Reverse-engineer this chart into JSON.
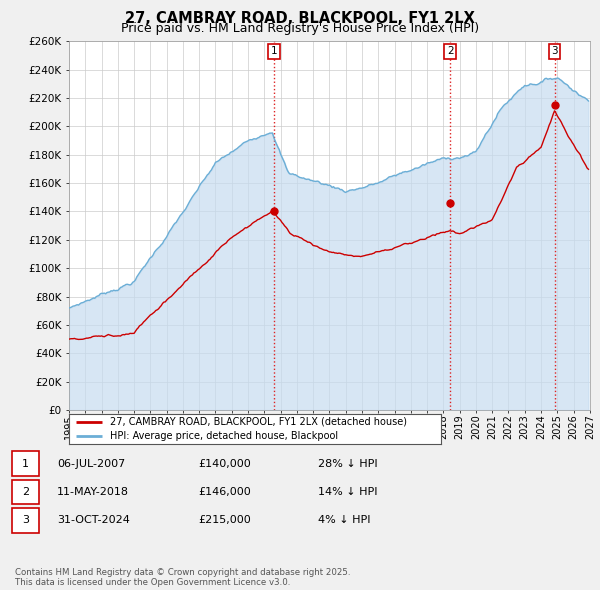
{
  "title": "27, CAMBRAY ROAD, BLACKPOOL, FY1 2LX",
  "subtitle": "Price paid vs. HM Land Registry's House Price Index (HPI)",
  "ylim": [
    0,
    260000
  ],
  "yticks": [
    0,
    20000,
    40000,
    60000,
    80000,
    100000,
    120000,
    140000,
    160000,
    180000,
    200000,
    220000,
    240000,
    260000
  ],
  "xlim_start": 1995.0,
  "xlim_end": 2027.0,
  "sale_year_months": [
    2007.583,
    2018.417,
    2024.833
  ],
  "sale_prices": [
    140000,
    146000,
    215000
  ],
  "sale_labels": [
    "1",
    "2",
    "3"
  ],
  "vline_color": "#dd2222",
  "legend_entries": [
    "27, CAMBRAY ROAD, BLACKPOOL, FY1 2LX (detached house)",
    "HPI: Average price, detached house, Blackpool"
  ],
  "table_rows": [
    [
      "1",
      "06-JUL-2007",
      "£140,000",
      "28% ↓ HPI"
    ],
    [
      "2",
      "11-MAY-2018",
      "£146,000",
      "14% ↓ HPI"
    ],
    [
      "3",
      "31-OCT-2024",
      "£215,000",
      "4% ↓ HPI"
    ]
  ],
  "footer": "Contains HM Land Registry data © Crown copyright and database right 2025.\nThis data is licensed under the Open Government Licence v3.0.",
  "hpi_color": "#6baed6",
  "hpi_fill_color": "#c6dcf0",
  "price_color": "#cc0000",
  "bg_color": "#f0f0f0",
  "plot_bg_color": "#ffffff",
  "grid_color": "#cccccc",
  "title_fontsize": 10.5,
  "subtitle_fontsize": 9,
  "axis_fontsize": 7.5,
  "legend_box_color": "#cc0000"
}
